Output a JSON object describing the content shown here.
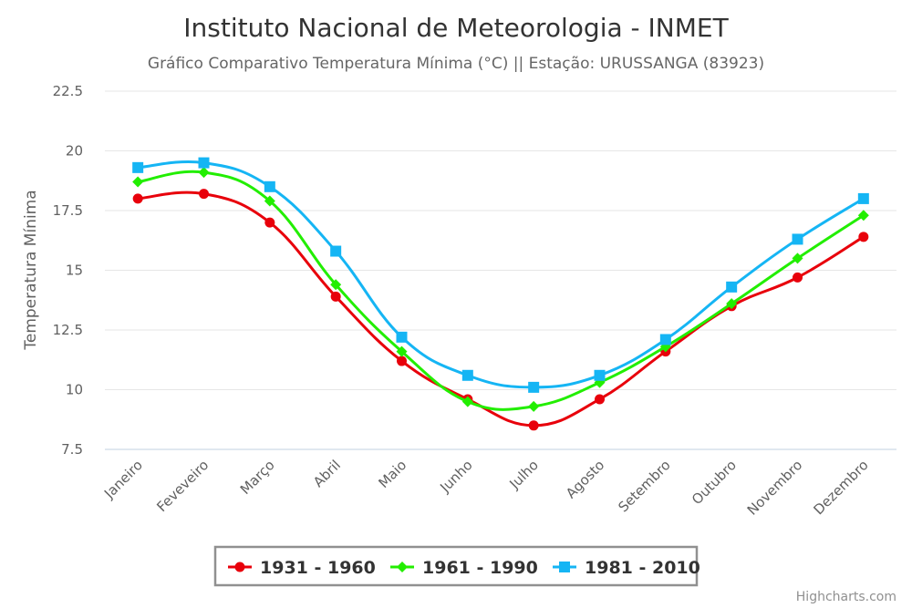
{
  "chart_data": {
    "type": "line",
    "title": "Instituto Nacional de Meteorologia - INMET",
    "subtitle": "Gráfico Comparativo Temperatura Mínima (°C) || Estação: URUSSANGA (83923)",
    "ylabel": "Temperatura Mínima",
    "xlabel": "",
    "ylim": [
      7.5,
      22.5
    ],
    "yticks": [
      "7.5",
      "10",
      "12.5",
      "15",
      "17.5",
      "20",
      "22.5"
    ],
    "grid": true,
    "legend_position": "bottom-center",
    "categories": [
      "Janeiro",
      "Feveveiro",
      "Março",
      "Abril",
      "Maio",
      "Junho",
      "Julho",
      "Agosto",
      "Setembro",
      "Outubro",
      "Novembro",
      "Dezembro"
    ],
    "series": [
      {
        "name": "1931 - 1960",
        "color": "#e8000b",
        "marker": "circle",
        "values": [
          18.0,
          18.2,
          17.0,
          13.9,
          11.2,
          9.6,
          8.5,
          9.6,
          11.6,
          13.5,
          14.7,
          16.4
        ]
      },
      {
        "name": "1961 - 1990",
        "color": "#22ee00",
        "marker": "diamond",
        "values": [
          18.7,
          19.1,
          17.9,
          14.4,
          11.6,
          9.5,
          9.3,
          10.3,
          11.8,
          13.6,
          15.5,
          17.3
        ]
      },
      {
        "name": "1981 - 2010",
        "color": "#15b5f4",
        "marker": "square",
        "values": [
          19.3,
          19.5,
          18.5,
          15.8,
          12.2,
          10.6,
          10.1,
          10.6,
          12.1,
          14.3,
          16.3,
          18.0
        ]
      }
    ],
    "credit": "Highcharts.com"
  }
}
